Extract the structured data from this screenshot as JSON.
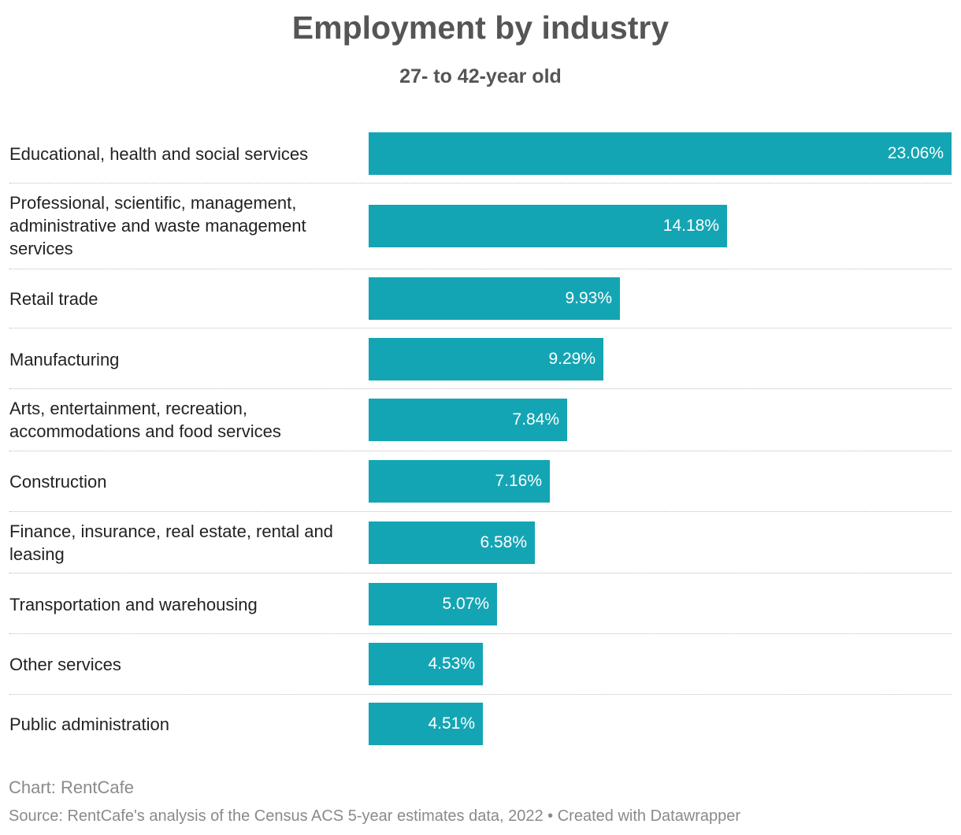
{
  "title": "Employment by industry",
  "subtitle": "27- to 42-year old",
  "chart_data": {
    "type": "bar",
    "orientation": "horizontal",
    "title": "Employment by industry",
    "subtitle": "27- to 42-year old",
    "categories": [
      "Educational, health and social services",
      "Professional, scientific, management, administrative and waste management services",
      "Retail trade",
      "Manufacturing",
      "Arts, entertainment, recreation, accommodations and  food services",
      "Construction",
      "Finance, insurance, real estate, rental and leasing",
      "Transportation and warehousing",
      "Other services",
      "Public administration"
    ],
    "values": [
      23.06,
      14.18,
      9.93,
      9.29,
      7.84,
      7.16,
      6.58,
      5.07,
      4.53,
      4.51
    ],
    "value_labels": [
      "23.06%",
      "14.18%",
      "9.93%",
      "9.29%",
      "7.84%",
      "7.16%",
      "6.58%",
      "5.07%",
      "4.53%",
      "4.51%"
    ],
    "unit": "%",
    "xlim": [
      0,
      23.06
    ],
    "bar_color": "#14a5b4",
    "grid": false,
    "legend": "none"
  },
  "footer": {
    "chart_credit": "Chart: RentCafe",
    "source": "Source: RentCafe's analysis of the Census ACS 5-year estimates data, 2022 • Created with Datawrapper"
  }
}
